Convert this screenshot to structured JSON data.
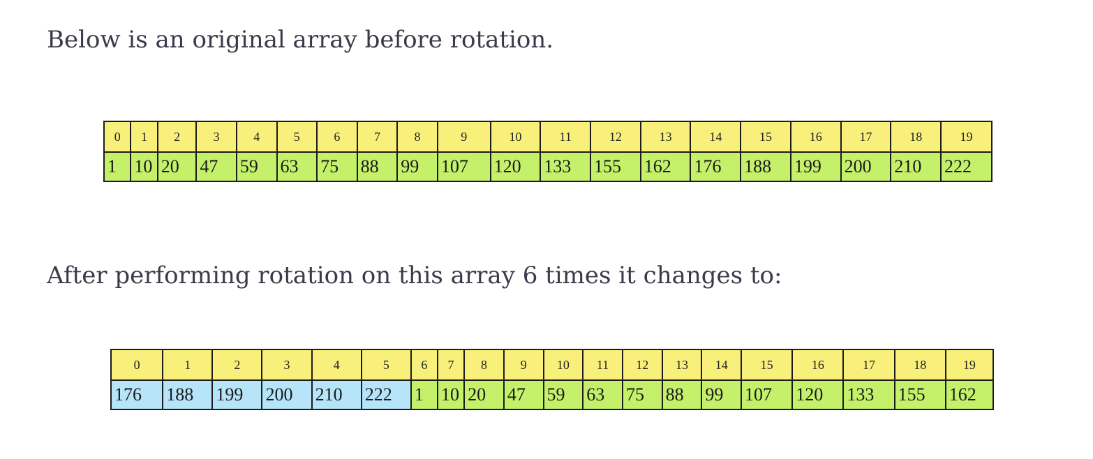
{
  "intro_text": "Below is an original array before rotation.",
  "after_text": "After performing rotation on this array 6 times it changes to:",
  "original": {
    "indices": [
      "0",
      "1",
      "2",
      "3",
      "4",
      "5",
      "6",
      "7",
      "8",
      "9",
      "10",
      "11",
      "12",
      "13",
      "14",
      "15",
      "16",
      "17",
      "18",
      "19"
    ],
    "values": [
      "1",
      "10",
      "20",
      "47",
      "59",
      "63",
      "75",
      "88",
      "99",
      "107",
      "120",
      "133",
      "155",
      "162",
      "176",
      "188",
      "199",
      "200",
      "210",
      "222"
    ]
  },
  "rotated": {
    "indices": [
      "0",
      "1",
      "2",
      "3",
      "4",
      "5",
      "6",
      "7",
      "8",
      "9",
      "10",
      "11",
      "12",
      "13",
      "14",
      "15",
      "16",
      "17",
      "18",
      "19"
    ],
    "values": [
      "176",
      "188",
      "199",
      "200",
      "210",
      "222",
      "1",
      "10",
      "20",
      "47",
      "59",
      "63",
      "75",
      "88",
      "99",
      "107",
      "120",
      "133",
      "155",
      "162"
    ],
    "rotated_count": 6
  },
  "colors": {
    "index_row": "#f8f07a",
    "value_cell": "#c4f06a",
    "rotated_cell": "#b6e4f8",
    "border": "#1c1c1c",
    "text": "#3a3a4a"
  }
}
